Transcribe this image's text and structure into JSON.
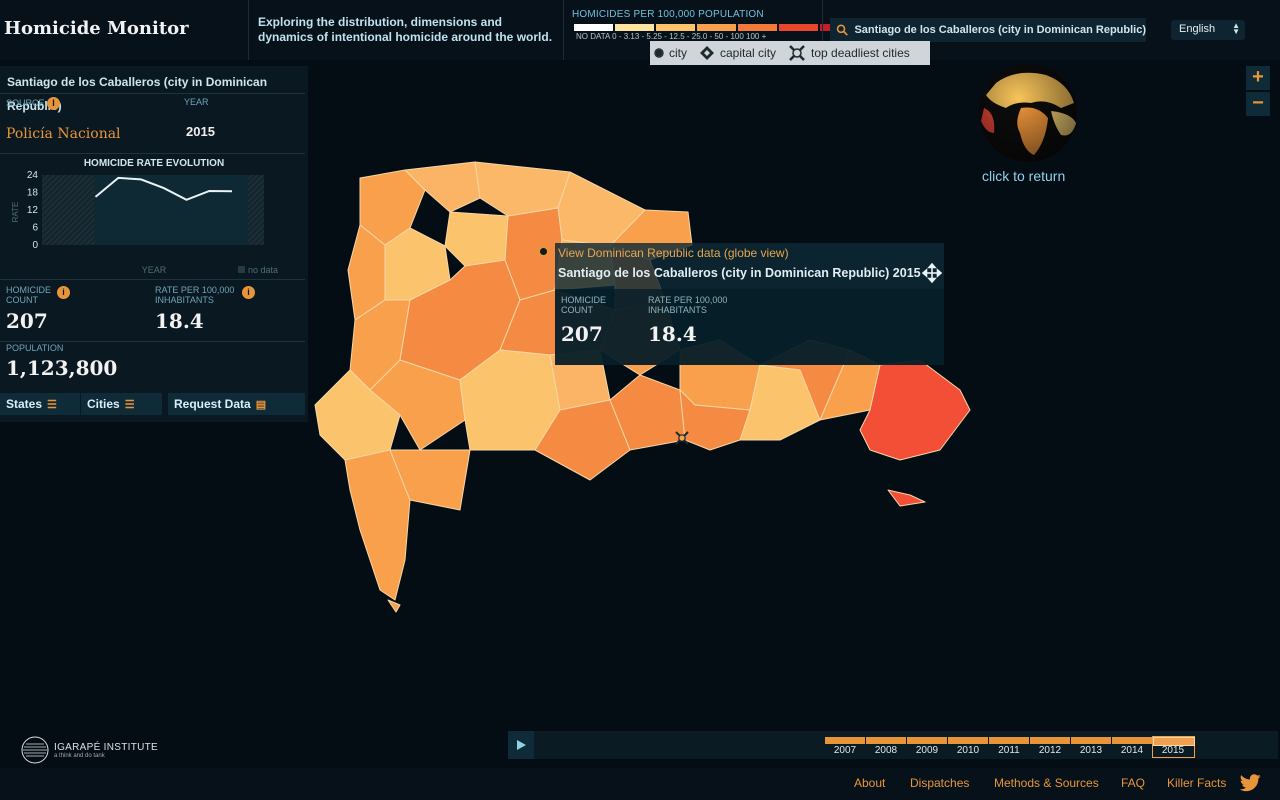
{
  "header": {
    "title": "Homicide Monitor",
    "tagline": "Exploring the distribution, dimensions and dynamics of intentional homicide around the world.",
    "legend_title": "HOMICIDES PER 100,000 POPULATION",
    "legend_labels": "NO DATA  0 - 3.13  - 5.25  - 12.5  - 25.0  - 50  - 100  100 +",
    "legend_colors": [
      "#ffffff",
      "#fde3a0",
      "#fcc36d",
      "#f9a04d",
      "#f37a38",
      "#e8472e",
      "#c41e2d",
      "#9b1230"
    ],
    "search_value": "Santiago de los Caballeros (city in Dominican Republic)",
    "language": "English"
  },
  "point_legend": {
    "city": "city",
    "capital": "capital city",
    "deadliest": "top deadliest cities"
  },
  "panel": {
    "city_name": "Santiago de los Caballeros (city in Dominican Republic)",
    "source_label": "SOURCE",
    "source_value": "Policía Nacional",
    "year_label": "YEAR",
    "year_value": "2015",
    "evolution_title": "HOMICIDE RATE EVOLUTION",
    "rate_axis_label": "RATE",
    "year_axis_label": "YEAR",
    "no_data_label": "no data",
    "count_label": "HOMICIDE COUNT",
    "count_value": "207",
    "rate_label": "RATE PER 100,000 INHABITANTS",
    "rate_value": "18.4",
    "population_label": "POPULATION",
    "population_value": "1,123,800",
    "tabs": [
      "States",
      "Cities",
      "Request Data"
    ]
  },
  "chart_data": {
    "type": "line",
    "title": "HOMICIDE RATE EVOLUTION",
    "xlabel": "YEAR",
    "ylabel": "RATE",
    "x": [
      2007,
      2008,
      2009,
      2010,
      2011,
      2012,
      2013,
      2014,
      2015
    ],
    "values": [
      null,
      null,
      16.5,
      23,
      22.5,
      19.5,
      15.5,
      18.5,
      18.4
    ],
    "yticks": [
      0,
      6,
      12,
      18,
      24
    ],
    "ylim": [
      0,
      24
    ]
  },
  "tooltip": {
    "link": "View Dominican Republic data (globe view)",
    "title": "Santiago de los Caballeros (city in Dominican Republic) 2015",
    "count_label": "HOMICIDE COUNT",
    "count_value": "207",
    "rate_label": "RATE PER 100,000 INHABITANTS",
    "rate_value": "18.4"
  },
  "globe": {
    "return_text": "click to return"
  },
  "zoom": {
    "in": "+",
    "out": "−"
  },
  "timeline": {
    "years": [
      "2007",
      "2008",
      "2009",
      "2010",
      "2011",
      "2012",
      "2013",
      "2014",
      "2015"
    ],
    "selected": "2015"
  },
  "brand": {
    "name": "IGARAPÉ INSTITUTE",
    "sub": "a think and do tank"
  },
  "footer": {
    "links": [
      "About",
      "Dispatches",
      "Methods & Sources",
      "FAQ",
      "Killer Facts"
    ]
  }
}
